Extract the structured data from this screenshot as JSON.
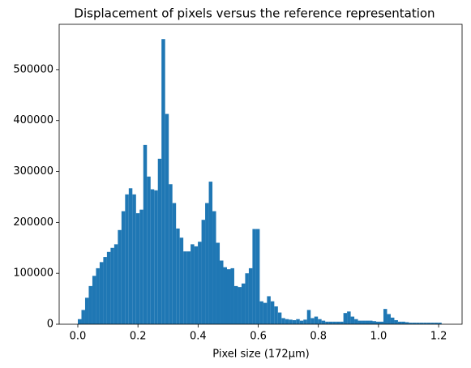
{
  "chart_data": {
    "type": "histogram",
    "title": "Displacement of pixels versus the reference representation",
    "xlabel": "Pixel size (172µm)",
    "color": "#1f77b4",
    "bins": [
      0,
      0.0121,
      0.0242,
      0.0363,
      0.0484,
      0.0605,
      0.0726,
      0.0847,
      0.0968,
      0.1089,
      0.121,
      0.1331,
      0.1452,
      0.1573,
      0.1694,
      0.1815,
      0.1936,
      0.2057,
      0.2178,
      0.2299,
      0.242,
      0.2541,
      0.2662,
      0.2783,
      0.2904,
      0.3025,
      0.3146,
      0.3267,
      0.3388,
      0.3509,
      0.363,
      0.3751,
      0.3872,
      0.3993,
      0.4114,
      0.4235,
      0.4356,
      0.4477,
      0.4598,
      0.4719,
      0.484,
      0.4961,
      0.5082,
      0.5203,
      0.5324,
      0.5445,
      0.5566,
      0.5687,
      0.5808,
      0.5929,
      0.605,
      0.6171,
      0.6292,
      0.6413,
      0.6534,
      0.6655,
      0.6776,
      0.6897,
      0.7018,
      0.7139,
      0.726,
      0.7381,
      0.7502,
      0.7623,
      0.7744,
      0.7865,
      0.7986,
      0.8107,
      0.8228,
      0.8349,
      0.847,
      0.8591,
      0.8712,
      0.8833,
      0.8954,
      0.9075,
      0.9196,
      0.9317,
      0.9438,
      0.9559,
      0.968,
      0.9801,
      0.9922,
      1.0043,
      1.0164,
      1.0285,
      1.0406,
      1.0527,
      1.0648,
      1.0769,
      1.089,
      1.1011,
      1.1132,
      1.1253,
      1.1374,
      1.1495,
      1.1616,
      1.1737,
      1.1858,
      1.1979,
      1.21
    ],
    "counts": [
      10000,
      28000,
      52000,
      75000,
      95000,
      110000,
      122000,
      132000,
      142000,
      150000,
      157000,
      185000,
      222000,
      255000,
      267000,
      255000,
      218000,
      225000,
      352000,
      290000,
      265000,
      263000,
      325000,
      560000,
      413000,
      275000,
      238000,
      188000,
      170000,
      143000,
      143000,
      157000,
      153000,
      162000,
      205000,
      238000,
      280000,
      222000,
      160000,
      125000,
      112000,
      108000,
      110000,
      75000,
      73000,
      80000,
      100000,
      110000,
      187000,
      187000,
      45000,
      42000,
      55000,
      45000,
      35000,
      23000,
      12000,
      10000,
      9000,
      8000,
      10000,
      7000,
      9000,
      28000,
      12000,
      15000,
      10000,
      7000,
      5000,
      5000,
      5000,
      5000,
      5000,
      22000,
      25000,
      15000,
      10000,
      7000,
      7000,
      7000,
      7000,
      6000,
      5000,
      5000,
      30000,
      20000,
      13000,
      8000,
      5000,
      5000,
      4000,
      3000,
      3000,
      3000,
      3000,
      3000,
      3000,
      3000,
      3000,
      3000
    ],
    "xlim": [
      -0.062,
      1.278
    ],
    "ylim": [
      0,
      589000
    ],
    "xticks": [
      {
        "value": 0,
        "label": "0.0"
      },
      {
        "value": 0.2,
        "label": "0.2"
      },
      {
        "value": 0.4,
        "label": "0.4"
      },
      {
        "value": 0.6,
        "label": "0.6"
      },
      {
        "value": 0.8,
        "label": "0.8"
      },
      {
        "value": 1,
        "label": "1.0"
      },
      {
        "value": 1.2,
        "label": "1.2"
      }
    ],
    "yticks": [
      0,
      100000,
      200000,
      300000,
      400000,
      500000
    ]
  }
}
